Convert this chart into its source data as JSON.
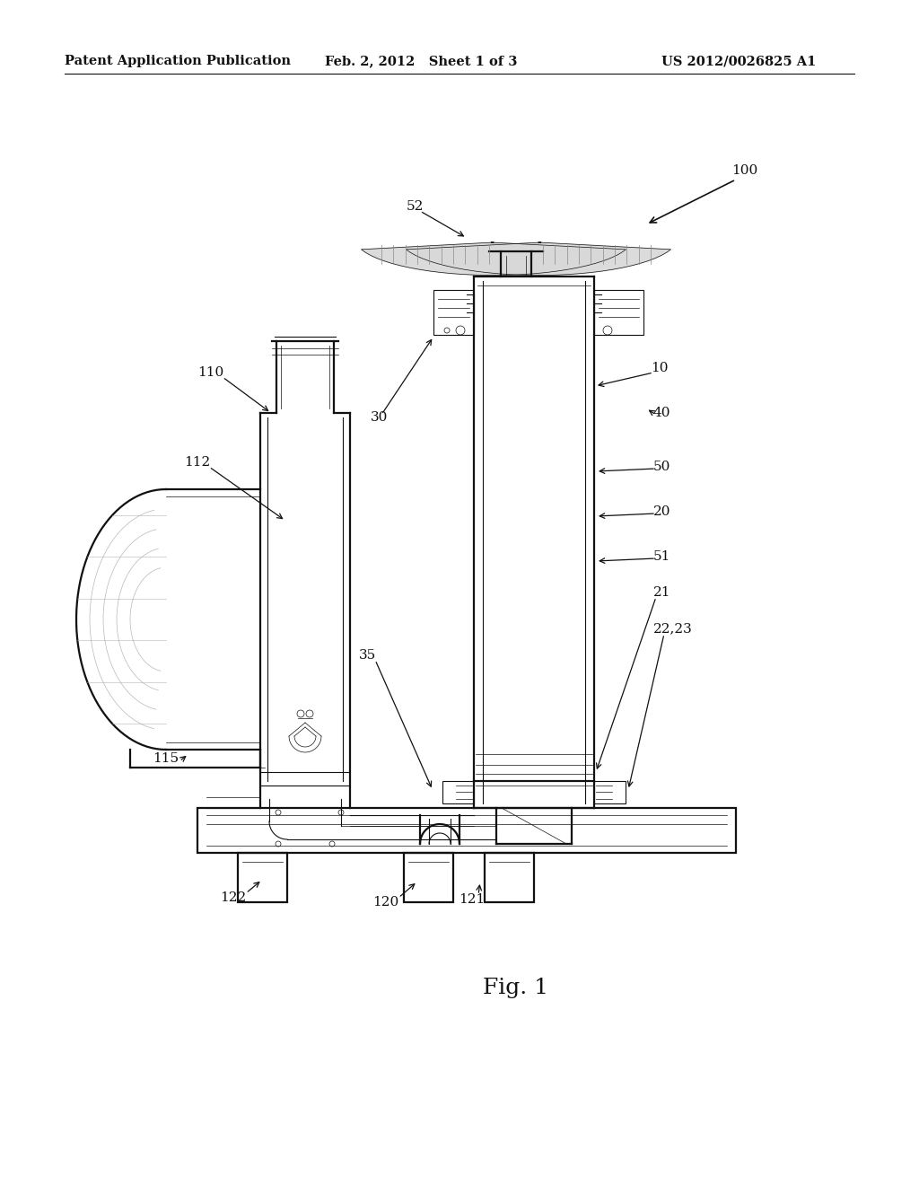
{
  "bg_color": "#ffffff",
  "header_left": "Patent Application Publication",
  "header_mid": "Feb. 2, 2012   Sheet 1 of 3",
  "header_right": "US 2012/0026825 A1",
  "fig_label": "Fig. 1",
  "arrow_color": "#111111",
  "line_color": "#111111",
  "text_color": "#111111",
  "header_fontsize": 10.5,
  "label_fontsize": 11,
  "fig_label_fontsize": 18,
  "lw_outer": 1.6,
  "lw_inner": 0.8,
  "lw_thin": 0.5
}
